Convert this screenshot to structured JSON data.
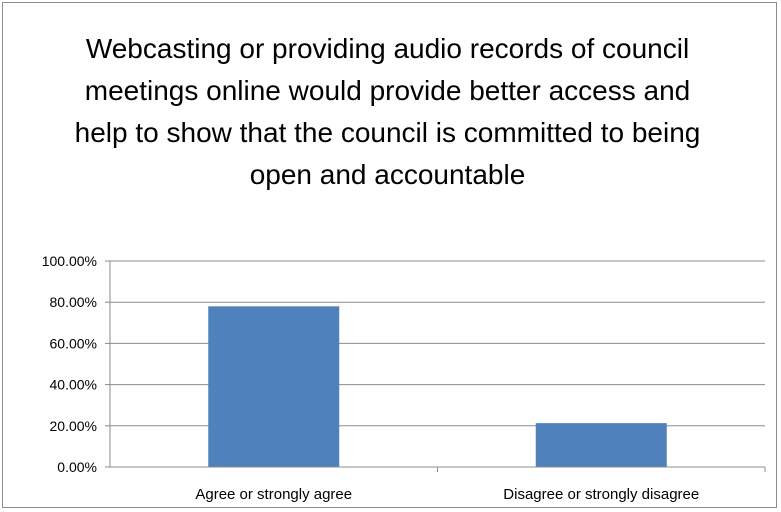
{
  "chart_data": {
    "type": "bar",
    "title": "Webcasting or providing audio records of council meetings online would provide better access and help to show that the council is committed to being open and accountable",
    "categories": [
      "Agree or strongly agree",
      "Disagree or strongly disagree"
    ],
    "values": [
      78.0,
      21.3
    ],
    "unit": "%",
    "ylim": [
      0,
      100
    ],
    "yticks": [
      0,
      20,
      40,
      60,
      80,
      100
    ],
    "ytick_labels": [
      "0.00%",
      "20.00%",
      "40.00%",
      "60.00%",
      "80.00%",
      "100.00%"
    ],
    "grid": true,
    "legend": "none",
    "bar_color": "#4f81bd"
  }
}
